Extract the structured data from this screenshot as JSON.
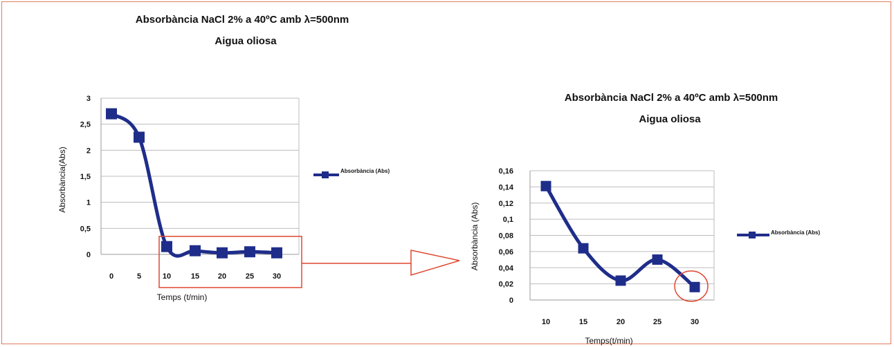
{
  "chart_data": [
    {
      "type": "line",
      "title": "Absorbància NaCl 2% a 40ºC amb λ=500nm",
      "subtitle": "Aigua oliosa",
      "xlabel": "Temps (t/min)",
      "ylabel": "Absorbància(Abs)",
      "x": [
        0,
        5,
        10,
        15,
        20,
        25,
        30
      ],
      "x_tick_labels": [
        "0",
        "5",
        "10",
        "15",
        "20",
        "25",
        "30"
      ],
      "y_tick_values": [
        0,
        0.5,
        1,
        1.5,
        2,
        2.5,
        3
      ],
      "y_tick_labels": [
        "0",
        "0,5",
        "1",
        "1,5",
        "2",
        "2,5",
        "3"
      ],
      "ylim": [
        0,
        3
      ],
      "grid": true,
      "legend_position": "right",
      "series": [
        {
          "name": "Absorbància (Abs)",
          "color": "#1f2d8a",
          "values": [
            2.7,
            2.25,
            0.15,
            0.07,
            0.03,
            0.05,
            0.03
          ]
        }
      ],
      "annotations": [
        "red box highlighting x from 10 to 30"
      ]
    },
    {
      "type": "line",
      "title": "Absorbància NaCl 2% a 40ºC amb λ=500nm",
      "subtitle": "Aigua oliosa",
      "xlabel": "Temps(t/min)",
      "ylabel": "Absorbància (Abs)",
      "x": [
        10,
        15,
        20,
        25,
        30
      ],
      "x_tick_labels": [
        "10",
        "15",
        "20",
        "25",
        "30"
      ],
      "y_tick_values": [
        0,
        0.02,
        0.04,
        0.06,
        0.08,
        0.1,
        0.12,
        0.14,
        0.16
      ],
      "y_tick_labels": [
        "0",
        "0,02",
        "0,04",
        "0,06",
        "0,08",
        "0,1",
        "0,12",
        "0,14",
        "0,16"
      ],
      "ylim": [
        0,
        0.16
      ],
      "grid": true,
      "legend_position": "right",
      "series": [
        {
          "name": "Absorbància (Abs)",
          "color": "#1f2d8a",
          "values": [
            0.141,
            0.064,
            0.024,
            0.05,
            0.016
          ]
        }
      ],
      "annotations": [
        "red circle around x = 30"
      ]
    }
  ],
  "highlight_color": "#e0472f"
}
